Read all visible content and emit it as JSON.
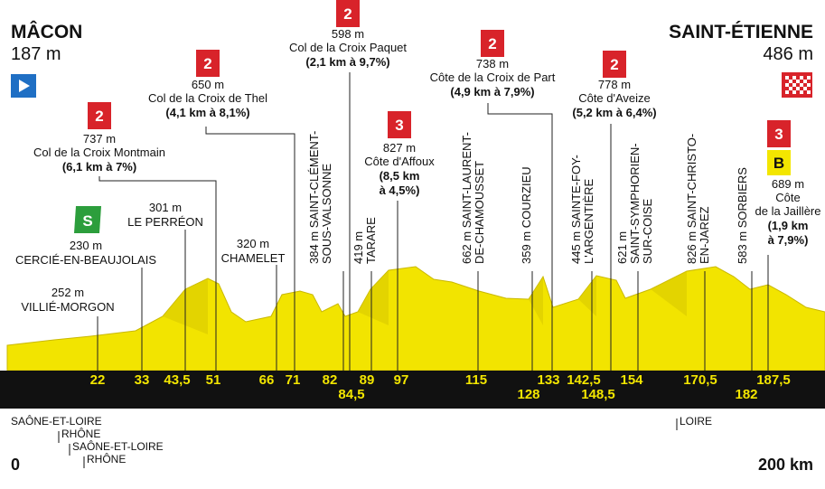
{
  "start": {
    "name": "MÂCON",
    "altitude": "187 m"
  },
  "finish": {
    "name": "SAINT-ÉTIENNE",
    "altitude": "486 m"
  },
  "climbs": [
    {
      "category": "2",
      "altitude": "737 m",
      "name": [
        "Col de la Croix Montmain"
      ],
      "detail": [
        "(6,1 km à 7%)"
      ]
    },
    {
      "category": "2",
      "altitude": "650 m",
      "name": [
        "Col de la Croix de Thel"
      ],
      "detail": [
        "(4,1 km à 8,1%)"
      ]
    },
    {
      "category": "2",
      "altitude": "598 m",
      "name": [
        "Col de la Croix Paquet"
      ],
      "detail": [
        "(2,1 km à 9,7%)"
      ]
    },
    {
      "category": "3",
      "altitude": "827 m",
      "name": [
        "Côte d'Affoux"
      ],
      "detail": [
        "(8,5 km",
        "à 4,5%)"
      ]
    },
    {
      "category": "2",
      "altitude": "738 m",
      "name": [
        "Côte de la Croix de Part"
      ],
      "detail": [
        "(4,9 km à 7,9%)"
      ]
    },
    {
      "category": "2",
      "altitude": "778 m",
      "name": [
        "Côte d'Aveize"
      ],
      "detail": [
        "(5,2 km à 6,4%)"
      ]
    },
    {
      "category": "3",
      "bonus": "B",
      "altitude": "689 m",
      "name": [
        "Côte",
        "de la Jaillère"
      ],
      "detail": [
        "(1,9 km",
        "à 7,9%)"
      ]
    }
  ],
  "sprint": "S",
  "places": [
    {
      "lines": [
        "252 m",
        "VILLIÉ-MORGON"
      ]
    },
    {
      "lines": [
        "230 m",
        "CERCIÉ-EN-BEAUJOLAIS"
      ]
    },
    {
      "lines": [
        "301 m",
        "LE PERRÉON"
      ]
    },
    {
      "lines": [
        "320 m",
        "CHAMELET"
      ]
    },
    {
      "lines": [
        "384 m SAINT-CLÉMENT-",
        "SOUS-VALSONNE"
      ]
    },
    {
      "lines": [
        "419 m",
        "TARARE"
      ]
    },
    {
      "lines": [
        "662 m SAINT-LAURENT-",
        "DE-CHAMOUSSET"
      ]
    },
    {
      "lines": [
        "359 m COURZIEU"
      ]
    },
    {
      "lines": [
        "445 m SAINTE-FOY-",
        "L'ARGENTIÈRE"
      ]
    },
    {
      "lines": [
        "621 m",
        "SAINT-SYMPHORIEN-",
        "SUR-COISE"
      ]
    },
    {
      "lines": [
        "826 m SAINT-CHRISTO-",
        "EN-JAREZ"
      ]
    },
    {
      "lines": [
        "583 m SORBIERS"
      ]
    }
  ],
  "km_markers": [
    "22",
    "33",
    "43,5",
    "51",
    "66",
    "71",
    "82",
    "84,5",
    "89",
    "97",
    "115",
    "128",
    "133",
    "142,5",
    "148,5",
    "154",
    "170,5",
    "182",
    "187,5"
  ],
  "regions": [
    "SAÔNE-ET-LOIRE",
    "RHÔNE",
    "SAÔNE-ET-LOIRE",
    "RHÔNE",
    "LOIRE"
  ],
  "axis": {
    "start": "0",
    "end": "200 km"
  }
}
